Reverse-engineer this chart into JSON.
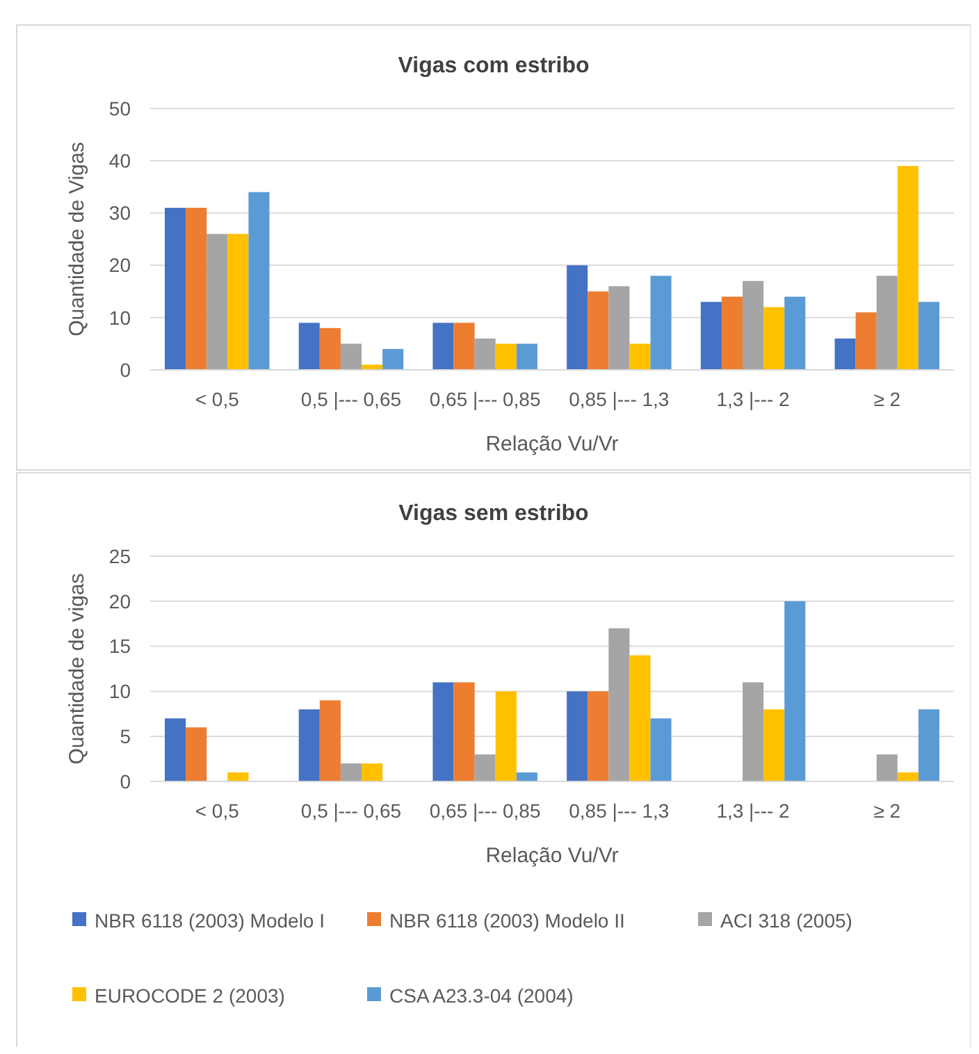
{
  "chart_data": [
    {
      "type": "bar",
      "title": "Vigas com estribo",
      "xlabel": "Relação Vu/Vr",
      "ylabel": "Quantidade de Vigas",
      "categories": [
        "< 0,5",
        "0,5 |--- 0,65",
        "0,65 |--- 0,85",
        "0,85 |--- 1,3",
        "1,3 |--- 2",
        "≥ 2"
      ],
      "ylim": [
        0,
        50
      ],
      "yticks": [
        0,
        10,
        20,
        30,
        40,
        50
      ],
      "grid": "y",
      "legend": false,
      "series": [
        {
          "color": "#4472c4",
          "values": [
            31,
            9,
            9,
            20,
            13,
            6
          ]
        },
        {
          "color": "#ed7d31",
          "values": [
            31,
            8,
            9,
            15,
            14,
            11
          ]
        },
        {
          "color": "#a5a5a5",
          "values": [
            26,
            5,
            6,
            16,
            17,
            18
          ]
        },
        {
          "color": "#ffc000",
          "values": [
            26,
            1,
            5,
            5,
            12,
            39
          ]
        },
        {
          "color": "#5b9bd5",
          "values": [
            34,
            4,
            5,
            18,
            14,
            13
          ]
        }
      ]
    },
    {
      "type": "bar",
      "title": "Vigas sem estribo",
      "xlabel": "Relação Vu/Vr",
      "ylabel": "Quantidade de vigas",
      "categories": [
        "< 0,5",
        "0,5 |--- 0,65",
        "0,65 |--- 0,85",
        "0,85 |--- 1,3",
        "1,3 |--- 2",
        "≥ 2"
      ],
      "ylim": [
        0,
        25
      ],
      "yticks": [
        0,
        5,
        10,
        15,
        20,
        25
      ],
      "grid": "y",
      "legend": "bottom",
      "series": [
        {
          "name": "NBR 6118 (2003) Modelo I",
          "color": "#4472c4",
          "values": [
            7,
            8,
            11,
            10,
            0,
            0
          ]
        },
        {
          "name": "NBR 6118 (2003) Modelo II",
          "color": "#ed7d31",
          "values": [
            6,
            9,
            11,
            10,
            0,
            0
          ]
        },
        {
          "name": "ACI 318 (2005)",
          "color": "#a5a5a5",
          "values": [
            0,
            2,
            3,
            17,
            11,
            3
          ]
        },
        {
          "name": "EUROCODE 2 (2003)",
          "color": "#ffc000",
          "values": [
            1,
            2,
            10,
            14,
            8,
            1
          ]
        },
        {
          "name": "CSA A23.3-04 (2004)",
          "color": "#5b9bd5",
          "values": [
            0,
            0,
            1,
            7,
            20,
            8
          ]
        }
      ]
    }
  ]
}
